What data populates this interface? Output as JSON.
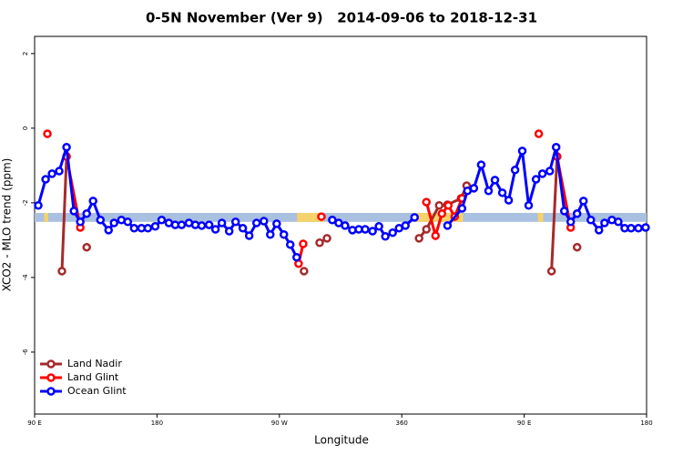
{
  "chart_data": {
    "type": "line",
    "title": "0-5N November (Ver 9)   2014-09-06 to 2018-12-31",
    "x_label": "Longitude",
    "y_label": "XCO2 - MLO trend (ppm)",
    "xlim": [
      90,
      540
    ],
    "xticks": [
      {
        "value": 90,
        "label": "90 E"
      },
      180,
      {
        "value": 270,
        "label": "90 W"
      },
      360,
      {
        "value": 450,
        "label": "90 E"
      },
      {
        "value": 540,
        "label": "180"
      }
    ],
    "ylim": [
      -7.66,
      2.46
    ],
    "yticks": [
      -6,
      -4,
      -2,
      0,
      2
    ],
    "band": {
      "ylim": [
        -2.27,
        -2.51
      ],
      "color": "#a9c0e0",
      "highlight_color": "#f5d36a",
      "highlights": [
        [
          97,
          100
        ],
        [
          283,
          303
        ],
        [
          368,
          405
        ],
        [
          460,
          464
        ]
      ]
    },
    "legend": "bottom-left",
    "series": [
      {
        "name": "Land Nadir",
        "color": "#a52a2a",
        "x": [
          110.1,
          113.5,
          null,
          128.3,
          null,
          288.1,
          null,
          299.6,
          305.0,
          null,
          372.7,
          378.1,
          387.5,
          393.6,
          403.6,
          407.7,
          null,
          470.1,
          474.2,
          null,
          488.9
        ],
        "values": [
          -3.83,
          -0.76,
          null,
          -3.19,
          null,
          -3.83,
          null,
          -3.07,
          -2.95,
          null,
          -2.95,
          -2.71,
          -2.07,
          -2.05,
          -1.88,
          -1.54,
          null,
          -3.83,
          -0.76,
          null,
          -3.19
        ]
      },
      {
        "name": "Land Glint",
        "color": "#ff0000",
        "x": [
          99.4,
          null,
          113.5,
          123.6,
          null,
          284.1,
          287.5,
          null,
          300.9,
          null,
          378.1,
          384.8,
          389.5,
          394.2,
          398.9,
          404.3,
          null,
          460.7,
          null,
          474.2,
          484.2
        ],
        "values": [
          -0.15,
          null,
          -0.76,
          -2.66,
          null,
          -3.63,
          -3.1,
          null,
          -2.37,
          null,
          -1.98,
          -2.88,
          -2.29,
          -2.07,
          -2.37,
          -1.88,
          null,
          -0.15,
          null,
          -0.76,
          -2.66
        ]
      },
      {
        "name": "Ocean Glint",
        "color": "#0000ff",
        "x": [
          92.7,
          98.1,
          102.8,
          108.1,
          113.5,
          118.9,
          123.6,
          128.3,
          133.0,
          138.4,
          144.4,
          148.4,
          153.8,
          158.5,
          163.2,
          168.6,
          173.3,
          178.7,
          183.4,
          188.7,
          193.4,
          198.1,
          203.5,
          208.2,
          212.9,
          218.3,
          223.0,
          227.7,
          233.1,
          237.8,
          243.1,
          247.8,
          253.2,
          258.6,
          263.3,
          268.0,
          273.3,
          278.0,
          282.7,
          null,
          308.9,
          313.6,
          318.3,
          323.7,
          328.4,
          333.1,
          338.5,
          343.2,
          347.9,
          353.3,
          358.0,
          362.7,
          369.4,
          null,
          393.6,
          404.3,
          408.3,
          413.0,
          418.4,
          423.8,
          428.5,
          433.9,
          438.6,
          443.3,
          448.6,
          453.3,
          458.7,
          463.4,
          468.8,
          473.5,
          479.5,
          484.2,
          488.9,
          493.6,
          499.0,
          505.0,
          509.1,
          514.5,
          519.2,
          523.9,
          528.6,
          534.0,
          539.3
        ],
        "values": [
          -2.07,
          -1.37,
          -1.22,
          -1.15,
          -0.51,
          -2.22,
          -2.51,
          -2.29,
          -1.95,
          -2.46,
          -2.73,
          -2.54,
          -2.46,
          -2.51,
          -2.68,
          -2.68,
          -2.68,
          -2.63,
          -2.46,
          -2.54,
          -2.59,
          -2.59,
          -2.54,
          -2.59,
          -2.61,
          -2.59,
          -2.71,
          -2.54,
          -2.76,
          -2.51,
          -2.68,
          -2.88,
          -2.54,
          -2.49,
          -2.85,
          -2.56,
          -2.85,
          -3.12,
          -3.46,
          null,
          -2.46,
          -2.54,
          -2.61,
          -2.73,
          -2.71,
          -2.71,
          -2.76,
          -2.63,
          -2.9,
          -2.8,
          -2.68,
          -2.61,
          -2.39,
          null,
          -2.61,
          -2.15,
          -1.68,
          -1.61,
          -0.98,
          -1.68,
          -1.39,
          -1.73,
          -1.93,
          -1.12,
          -0.61,
          -2.07,
          -1.37,
          -1.22,
          -1.15,
          -0.51,
          -2.22,
          -2.51,
          -2.29,
          -1.95,
          -2.46,
          -2.73,
          -2.54,
          -2.46,
          -2.51,
          -2.68,
          -2.68,
          -2.68,
          -2.66
        ]
      }
    ]
  }
}
